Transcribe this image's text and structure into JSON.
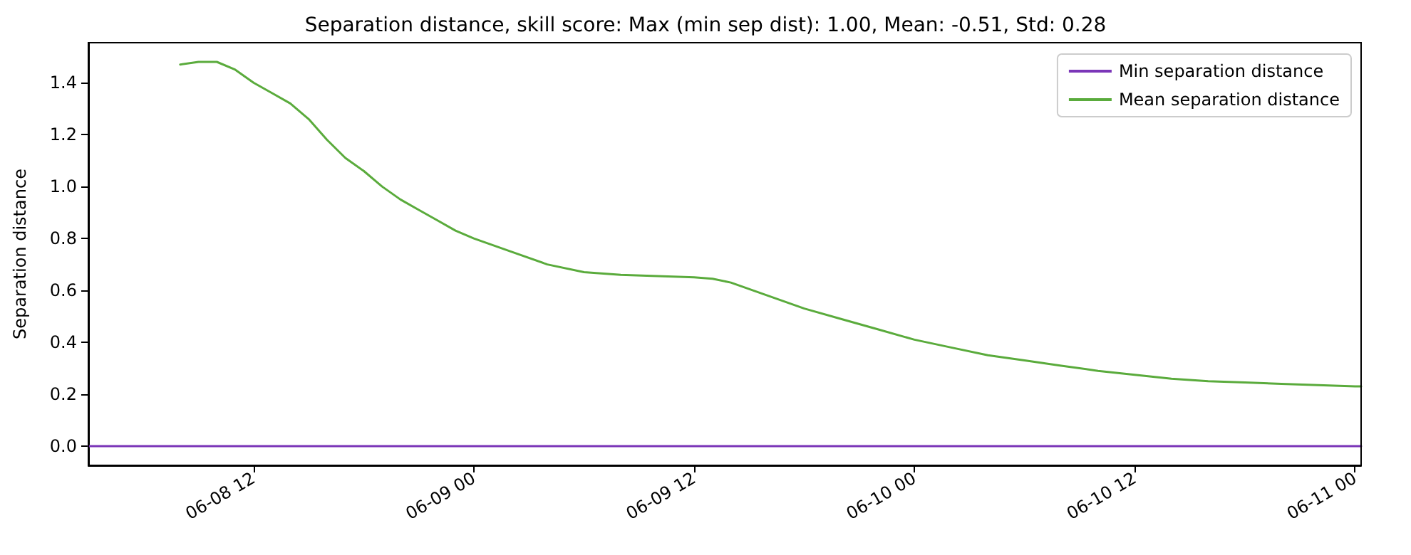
{
  "chart_data": {
    "type": "line",
    "title": "Separation distance, skill score: Max (min sep dist): 1.00, Mean: -0.51, Std: 0.28",
    "ylabel": "Separation distance",
    "xlim": [
      "--06-08T03:00",
      "--06-11T00:20"
    ],
    "xticks": [
      {
        "value": "--06-08T12:00",
        "label": "06-08 12"
      },
      {
        "value": "--06-09T00:00",
        "label": "06-09 00"
      },
      {
        "value": "--06-09T12:00",
        "label": "06-09 12"
      },
      {
        "value": "--06-10T00:00",
        "label": "06-10 00"
      },
      {
        "value": "--06-10T12:00",
        "label": "06-10 12"
      },
      {
        "value": "--06-11T00:00",
        "label": "06-11 00"
      }
    ],
    "ylim": [
      -0.074,
      1.554
    ],
    "yticks": [
      {
        "value": 0,
        "label": "0.0"
      },
      {
        "value": 0.2,
        "label": "0.2"
      },
      {
        "value": 0.4,
        "label": "0.4"
      },
      {
        "value": 0.6,
        "label": "0.6"
      },
      {
        "value": 0.8,
        "label": "0.8"
      },
      {
        "value": 1,
        "label": "1.0"
      },
      {
        "value": 1.2,
        "label": "1.2"
      },
      {
        "value": 1.4,
        "label": "1.4"
      }
    ],
    "legend": "top right",
    "grid": false,
    "marker": "none",
    "line_style": "solid",
    "series": [
      {
        "name": "Min separation distance",
        "color": "#7b36b8",
        "x": [
          "--06-08T03:00",
          "--06-11T00:20"
        ],
        "values": [
          0,
          0
        ]
      },
      {
        "name": "Mean separation distance",
        "color": "#5aab3c",
        "x": [
          "--06-08T08:00",
          "--06-08T09:00",
          "--06-08T10:00",
          "--06-08T11:00",
          "--06-08T12:00",
          "--06-08T13:00",
          "--06-08T14:00",
          "--06-08T15:00",
          "--06-08T16:00",
          "--06-08T17:00",
          "--06-08T18:00",
          "--06-08T19:00",
          "--06-08T20:00",
          "--06-08T21:00",
          "--06-08T22:00",
          "--06-08T23:00",
          "--06-09T00:00",
          "--06-09T02:00",
          "--06-09T04:00",
          "--06-09T06:00",
          "--06-09T08:00",
          "--06-09T10:00",
          "--06-09T12:00",
          "--06-09T13:00",
          "--06-09T14:00",
          "--06-09T16:00",
          "--06-09T18:00",
          "--06-09T20:00",
          "--06-09T22:00",
          "--06-10T00:00",
          "--06-10T02:00",
          "--06-10T04:00",
          "--06-10T06:00",
          "--06-10T08:00",
          "--06-10T10:00",
          "--06-10T12:00",
          "--06-10T14:00",
          "--06-10T16:00",
          "--06-10T18:00",
          "--06-10T20:00",
          "--06-10T22:00",
          "--06-11T00:00",
          "--06-11T00:20"
        ],
        "values": [
          1.47,
          1.48,
          1.48,
          1.45,
          1.4,
          1.36,
          1.32,
          1.26,
          1.18,
          1.11,
          1.06,
          1.0,
          0.95,
          0.91,
          0.87,
          0.83,
          0.8,
          0.75,
          0.7,
          0.67,
          0.66,
          0.655,
          0.65,
          0.645,
          0.63,
          0.58,
          0.53,
          0.49,
          0.45,
          0.41,
          0.38,
          0.35,
          0.33,
          0.31,
          0.29,
          0.275,
          0.26,
          0.25,
          0.245,
          0.24,
          0.235,
          0.23,
          0.23
        ]
      }
    ]
  }
}
